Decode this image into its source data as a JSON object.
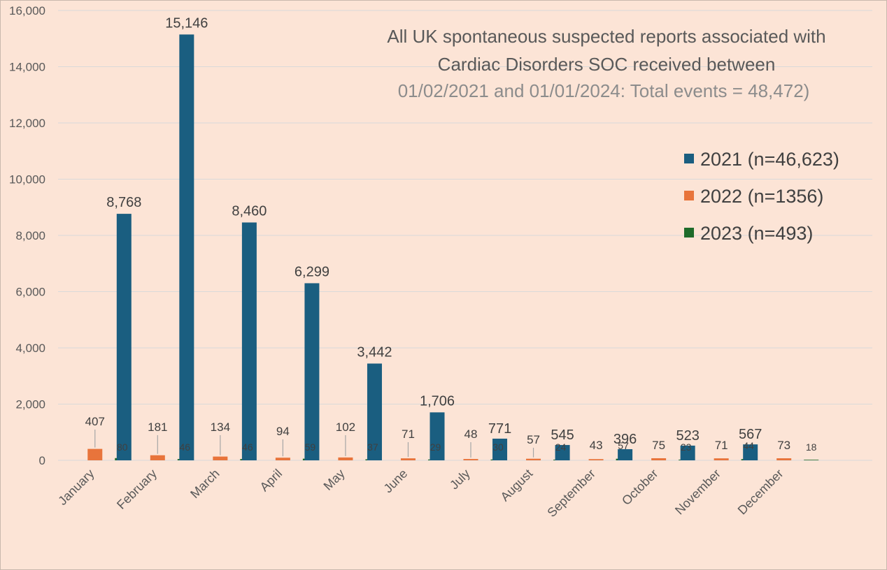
{
  "chart_data": {
    "type": "bar",
    "title": "All UK spontaneous suspected reports associated with Cardiac Disorders SOC received between 01/02/2021 and 01/01/2024: Total events = 48,472)",
    "title_lines": [
      "All UK spontaneous suspected reports associated with",
      "Cardiac Disorders SOC received between",
      "01/02/2021 and 01/01/2024: Total events = 48,472)"
    ],
    "categories": [
      "January",
      "February",
      "March",
      "April",
      "May",
      "June",
      "July",
      "August",
      "September",
      "October",
      "November",
      "December"
    ],
    "series": [
      {
        "name": "2021",
        "legend_label": "2021 (n=46,623)",
        "color": "#1a5e80",
        "values": [
          null,
          8768,
          15146,
          8460,
          6299,
          3442,
          1706,
          771,
          545,
          396,
          523,
          567
        ],
        "labels": [
          "",
          "8,768",
          "15,146",
          "8,460",
          "6,299",
          "3,442",
          "1,706",
          "771",
          "545",
          "396",
          "523",
          "567"
        ]
      },
      {
        "name": "2022",
        "legend_label": "2022 (n=1356)",
        "color": "#e8743b",
        "values": [
          407,
          181,
          134,
          94,
          102,
          71,
          48,
          57,
          43,
          75,
          71,
          73
        ],
        "labels": [
          "407",
          "181",
          "134",
          "94",
          "102",
          "71",
          "48",
          "57",
          "43",
          "75",
          "71",
          "73"
        ]
      },
      {
        "name": "2023",
        "legend_label": "2023 (n=493)",
        "color": "#1e6b2a",
        "values": [
          80,
          46,
          46,
          59,
          37,
          29,
          30,
          24,
          57,
          23,
          44,
          18
        ],
        "labels": [
          "80",
          "46",
          "46",
          "59",
          "37",
          "29",
          "30",
          "24",
          "57",
          "23",
          "44",
          "18"
        ]
      }
    ],
    "ylim": [
      0,
      16000
    ],
    "yticks": [
      0,
      2000,
      4000,
      6000,
      8000,
      10000,
      12000,
      14000,
      16000
    ],
    "ytick_labels": [
      "0",
      "2,000",
      "4,000",
      "6,000",
      "8,000",
      "10,000",
      "12,000",
      "14,000",
      "16,000"
    ],
    "xlabel": "",
    "ylabel": "",
    "grid": true,
    "legend_position": "right",
    "colors": {
      "background": "#fce4d6",
      "grid": "#d9d9d9",
      "title_dark": "#595959",
      "title_light": "#8c8c8c"
    }
  }
}
